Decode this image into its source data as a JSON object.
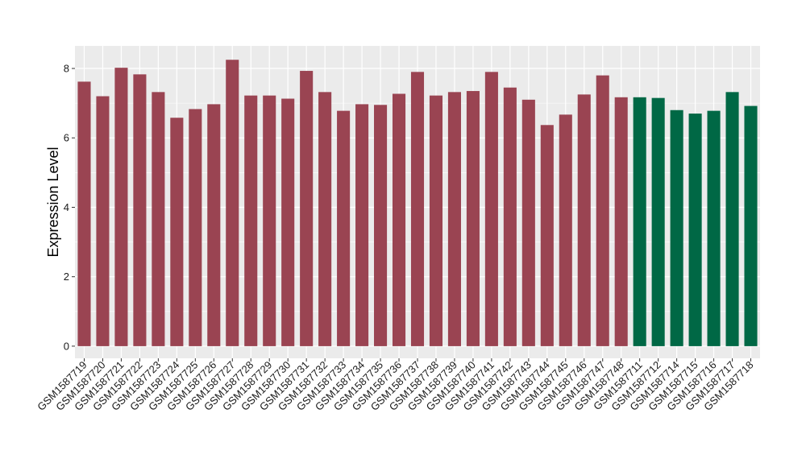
{
  "chart_data": {
    "type": "bar",
    "ylabel": "Expression Level",
    "xlabel": "",
    "ylim": [
      -0.35,
      8.65
    ],
    "yticks": [
      0,
      2,
      4,
      6,
      8
    ],
    "grid": true,
    "categories": [
      "GSM1587719",
      "GSM1587720",
      "GSM1587721",
      "GSM1587722",
      "GSM1587723",
      "GSM1587724",
      "GSM1587725",
      "GSM1587726",
      "GSM1587727",
      "GSM1587728",
      "GSM1587729",
      "GSM1587730",
      "GSM1587731",
      "GSM1587732",
      "GSM1587733",
      "GSM1587734",
      "GSM1587735",
      "GSM1587736",
      "GSM1587737",
      "GSM1587738",
      "GSM1587739",
      "GSM1587740",
      "GSM1587741",
      "GSM1587742",
      "GSM1587743",
      "GSM1587744",
      "GSM1587745",
      "GSM1587746",
      "GSM1587747",
      "GSM1587748",
      "GSM1587711",
      "GSM1587712",
      "GSM1587714",
      "GSM1587715",
      "GSM1587716",
      "GSM1587717",
      "GSM1587718"
    ],
    "values": [
      7.62,
      7.2,
      8.02,
      7.83,
      7.32,
      6.58,
      6.83,
      6.97,
      8.25,
      7.22,
      7.22,
      7.13,
      7.93,
      7.32,
      6.78,
      6.97,
      6.95,
      7.27,
      7.9,
      7.22,
      7.32,
      7.35,
      7.9,
      7.45,
      7.1,
      6.37,
      6.67,
      7.25,
      7.8,
      7.17,
      7.17,
      7.15,
      6.8,
      6.7,
      6.78,
      7.32,
      6.92
    ],
    "groups": [
      "a",
      "a",
      "a",
      "a",
      "a",
      "a",
      "a",
      "a",
      "a",
      "a",
      "a",
      "a",
      "a",
      "a",
      "a",
      "a",
      "a",
      "a",
      "a",
      "a",
      "a",
      "a",
      "a",
      "a",
      "a",
      "a",
      "a",
      "a",
      "a",
      "a",
      "b",
      "b",
      "b",
      "b",
      "b",
      "b",
      "b"
    ],
    "colors": {
      "a": "#9a4452",
      "b": "#006845"
    },
    "panel_color": "#ebebeb",
    "grid_color": "#ffffff"
  }
}
